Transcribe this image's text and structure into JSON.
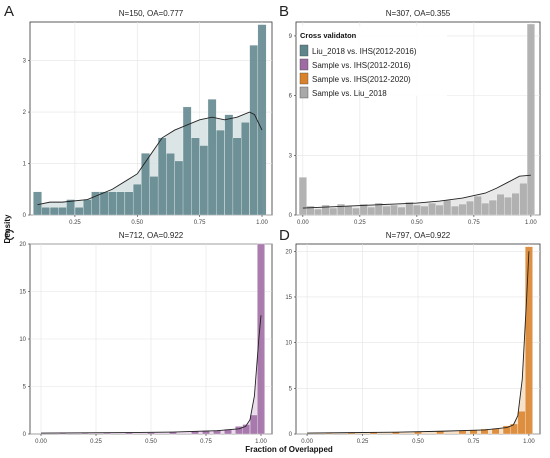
{
  "figure": {
    "ylabel": "Density",
    "xlabel": "Fraction of Overlapped",
    "legend": {
      "title": "Cross validaton",
      "placement": "top-left of panel B",
      "items": [
        {
          "label": "Liu_2018 vs. IHS(2012-2016)",
          "color": "#5e858c"
        },
        {
          "label": "Sample vs. IHS(2012-2016)",
          "color": "#9e6ba3"
        },
        {
          "label": "Sample vs. IHS(2012-2020)",
          "color": "#d9822b"
        },
        {
          "label": "Sample vs. Liu_2018",
          "color": "#a9a9a9"
        }
      ]
    }
  },
  "chart_data": [
    {
      "panel": "A",
      "type": "bar",
      "title": "N=150, OA=0.777",
      "color": "#5e858c",
      "shade": "#d5e0e2",
      "grid": true,
      "xlim": [
        0.07,
        1.04
      ],
      "ylim": [
        0,
        3.75
      ],
      "xticks": [
        0.25,
        0.5,
        0.75,
        1.0
      ],
      "xtick_labels": [
        "0.25",
        "0.50",
        "0.75",
        "1.00"
      ],
      "yticks": [
        0,
        1,
        2,
        3
      ],
      "ytick_labels": [
        "0",
        "1",
        "2",
        "3"
      ],
      "bins": [
        {
          "x": 0.1,
          "y": 0.45
        },
        {
          "x": 0.133,
          "y": 0.15
        },
        {
          "x": 0.167,
          "y": 0.15
        },
        {
          "x": 0.2,
          "y": 0.15
        },
        {
          "x": 0.233,
          "y": 0.3
        },
        {
          "x": 0.267,
          "y": 0.15
        },
        {
          "x": 0.3,
          "y": 0.3
        },
        {
          "x": 0.333,
          "y": 0.45
        },
        {
          "x": 0.367,
          "y": 0.45
        },
        {
          "x": 0.4,
          "y": 0.45
        },
        {
          "x": 0.433,
          "y": 0.45
        },
        {
          "x": 0.467,
          "y": 0.45
        },
        {
          "x": 0.5,
          "y": 0.6
        },
        {
          "x": 0.533,
          "y": 1.2
        },
        {
          "x": 0.567,
          "y": 0.75
        },
        {
          "x": 0.6,
          "y": 1.5
        },
        {
          "x": 0.633,
          "y": 1.2
        },
        {
          "x": 0.667,
          "y": 1.05
        },
        {
          "x": 0.7,
          "y": 2.1
        },
        {
          "x": 0.733,
          "y": 1.5
        },
        {
          "x": 0.767,
          "y": 1.35
        },
        {
          "x": 0.8,
          "y": 2.25
        },
        {
          "x": 0.833,
          "y": 1.65
        },
        {
          "x": 0.867,
          "y": 1.95
        },
        {
          "x": 0.9,
          "y": 1.5
        },
        {
          "x": 0.933,
          "y": 1.8
        },
        {
          "x": 0.967,
          "y": 3.3
        },
        {
          "x": 1.0,
          "y": 3.7
        }
      ],
      "bin_width": 0.0333,
      "density_curve": [
        [
          0.1,
          0.2
        ],
        [
          0.15,
          0.25
        ],
        [
          0.2,
          0.25
        ],
        [
          0.3,
          0.3
        ],
        [
          0.4,
          0.5
        ],
        [
          0.5,
          0.8
        ],
        [
          0.55,
          1.15
        ],
        [
          0.6,
          1.5
        ],
        [
          0.65,
          1.65
        ],
        [
          0.7,
          1.75
        ],
        [
          0.75,
          1.85
        ],
        [
          0.8,
          1.9
        ],
        [
          0.85,
          1.85
        ],
        [
          0.9,
          1.9
        ],
        [
          0.95,
          2.0
        ],
        [
          0.97,
          1.95
        ],
        [
          1.0,
          1.65
        ]
      ]
    },
    {
      "panel": "B",
      "type": "bar",
      "title": "N=307, OA=0.355",
      "color": "#a9a9a9",
      "shade": "#e4e4e4",
      "grid": true,
      "xlim": [
        -0.03,
        1.04
      ],
      "ylim": [
        0,
        9.7
      ],
      "xticks": [
        0,
        0.25,
        0.5,
        0.75,
        1.0
      ],
      "xtick_labels": [
        "0.00",
        "0.25",
        "0.50",
        "0.75",
        "1.00"
      ],
      "yticks": [
        0,
        3,
        6,
        9
      ],
      "ytick_labels": [
        "0",
        "3",
        "6",
        "9"
      ],
      "bins": [
        {
          "x": 0.0,
          "y": 1.9
        },
        {
          "x": 0.033,
          "y": 0.45
        },
        {
          "x": 0.067,
          "y": 0.3
        },
        {
          "x": 0.1,
          "y": 0.5
        },
        {
          "x": 0.133,
          "y": 0.35
        },
        {
          "x": 0.167,
          "y": 0.55
        },
        {
          "x": 0.2,
          "y": 0.45
        },
        {
          "x": 0.233,
          "y": 0.35
        },
        {
          "x": 0.267,
          "y": 0.55
        },
        {
          "x": 0.3,
          "y": 0.4
        },
        {
          "x": 0.333,
          "y": 0.6
        },
        {
          "x": 0.367,
          "y": 0.45
        },
        {
          "x": 0.4,
          "y": 0.5
        },
        {
          "x": 0.433,
          "y": 0.4
        },
        {
          "x": 0.467,
          "y": 0.65
        },
        {
          "x": 0.5,
          "y": 0.5
        },
        {
          "x": 0.533,
          "y": 0.45
        },
        {
          "x": 0.567,
          "y": 0.6
        },
        {
          "x": 0.6,
          "y": 0.5
        },
        {
          "x": 0.633,
          "y": 0.75
        },
        {
          "x": 0.667,
          "y": 0.45
        },
        {
          "x": 0.7,
          "y": 0.55
        },
        {
          "x": 0.733,
          "y": 0.7
        },
        {
          "x": 0.767,
          "y": 0.95
        },
        {
          "x": 0.8,
          "y": 0.6
        },
        {
          "x": 0.833,
          "y": 0.75
        },
        {
          "x": 0.867,
          "y": 1.05
        },
        {
          "x": 0.9,
          "y": 0.9
        },
        {
          "x": 0.933,
          "y": 1.1
        },
        {
          "x": 0.967,
          "y": 1.6
        },
        {
          "x": 1.0,
          "y": 9.6
        }
      ],
      "bin_width": 0.0333,
      "density_curve": [
        [
          0.0,
          0.35
        ],
        [
          0.1,
          0.4
        ],
        [
          0.2,
          0.45
        ],
        [
          0.3,
          0.5
        ],
        [
          0.4,
          0.55
        ],
        [
          0.5,
          0.6
        ],
        [
          0.6,
          0.7
        ],
        [
          0.7,
          0.85
        ],
        [
          0.8,
          1.1
        ],
        [
          0.85,
          1.35
        ],
        [
          0.9,
          1.65
        ],
        [
          0.95,
          1.95
        ],
        [
          1.0,
          2.0
        ]
      ]
    },
    {
      "panel": "C",
      "type": "bar",
      "title": "N=712, OA=0.922",
      "color": "#9e6ba3",
      "shade": "#e7d6e9",
      "grid": true,
      "xlim": [
        -0.05,
        1.05
      ],
      "ylim": [
        0,
        20
      ],
      "xticks": [
        0,
        0.25,
        0.5,
        0.75,
        1.0
      ],
      "xtick_labels": [
        "0.00",
        "0.25",
        "0.50",
        "0.75",
        "1.00"
      ],
      "yticks": [
        0,
        5,
        10,
        15,
        20
      ],
      "ytick_labels": [
        "0",
        "5",
        "10",
        "15",
        "20"
      ],
      "bins": [
        {
          "x": 0.1,
          "y": 0.1
        },
        {
          "x": 0.2,
          "y": 0.1
        },
        {
          "x": 0.3,
          "y": 0.1
        },
        {
          "x": 0.4,
          "y": 0.15
        },
        {
          "x": 0.5,
          "y": 0.15
        },
        {
          "x": 0.6,
          "y": 0.2
        },
        {
          "x": 0.7,
          "y": 0.3
        },
        {
          "x": 0.75,
          "y": 0.35
        },
        {
          "x": 0.8,
          "y": 0.4
        },
        {
          "x": 0.85,
          "y": 0.5
        },
        {
          "x": 0.9,
          "y": 0.8
        },
        {
          "x": 0.933,
          "y": 1.0
        },
        {
          "x": 0.967,
          "y": 2.0
        },
        {
          "x": 1.0,
          "y": 20
        }
      ],
      "bin_width": 0.0333,
      "density_curve": [
        [
          0.0,
          0.1
        ],
        [
          0.2,
          0.12
        ],
        [
          0.4,
          0.15
        ],
        [
          0.6,
          0.2
        ],
        [
          0.8,
          0.35
        ],
        [
          0.9,
          0.55
        ],
        [
          0.93,
          0.8
        ],
        [
          0.95,
          1.5
        ],
        [
          0.97,
          4.0
        ],
        [
          0.99,
          10.0
        ],
        [
          1.0,
          12.5
        ]
      ]
    },
    {
      "panel": "D",
      "type": "bar",
      "title": "N=797, OA=0.922",
      "color": "#d9822b",
      "shade": "#f4dcc2",
      "grid": true,
      "xlim": [
        -0.05,
        1.05
      ],
      "ylim": [
        0,
        20.8
      ],
      "xticks": [
        0,
        0.25,
        0.5,
        0.75,
        1.0
      ],
      "xtick_labels": [
        "0.00",
        "0.25",
        "0.50",
        "0.75",
        "1.00"
      ],
      "yticks": [
        0,
        5,
        10,
        15,
        20
      ],
      "ytick_labels": [
        "0",
        "5",
        "10",
        "15",
        "20"
      ],
      "bins": [
        {
          "x": 0.1,
          "y": 0.1
        },
        {
          "x": 0.2,
          "y": 0.15
        },
        {
          "x": 0.3,
          "y": 0.2
        },
        {
          "x": 0.4,
          "y": 0.2
        },
        {
          "x": 0.5,
          "y": 0.25
        },
        {
          "x": 0.6,
          "y": 0.3
        },
        {
          "x": 0.7,
          "y": 0.35
        },
        {
          "x": 0.75,
          "y": 0.4
        },
        {
          "x": 0.8,
          "y": 0.55
        },
        {
          "x": 0.85,
          "y": 0.6
        },
        {
          "x": 0.9,
          "y": 0.9
        },
        {
          "x": 0.933,
          "y": 1.1
        },
        {
          "x": 0.967,
          "y": 2.5
        },
        {
          "x": 1.0,
          "y": 20.5
        }
      ],
      "bin_width": 0.0333,
      "density_curve": [
        [
          0.0,
          0.1
        ],
        [
          0.2,
          0.15
        ],
        [
          0.4,
          0.2
        ],
        [
          0.6,
          0.3
        ],
        [
          0.8,
          0.45
        ],
        [
          0.9,
          0.7
        ],
        [
          0.93,
          1.0
        ],
        [
          0.95,
          2.0
        ],
        [
          0.97,
          6.0
        ],
        [
          0.99,
          15.0
        ],
        [
          1.0,
          20.0
        ]
      ]
    }
  ]
}
